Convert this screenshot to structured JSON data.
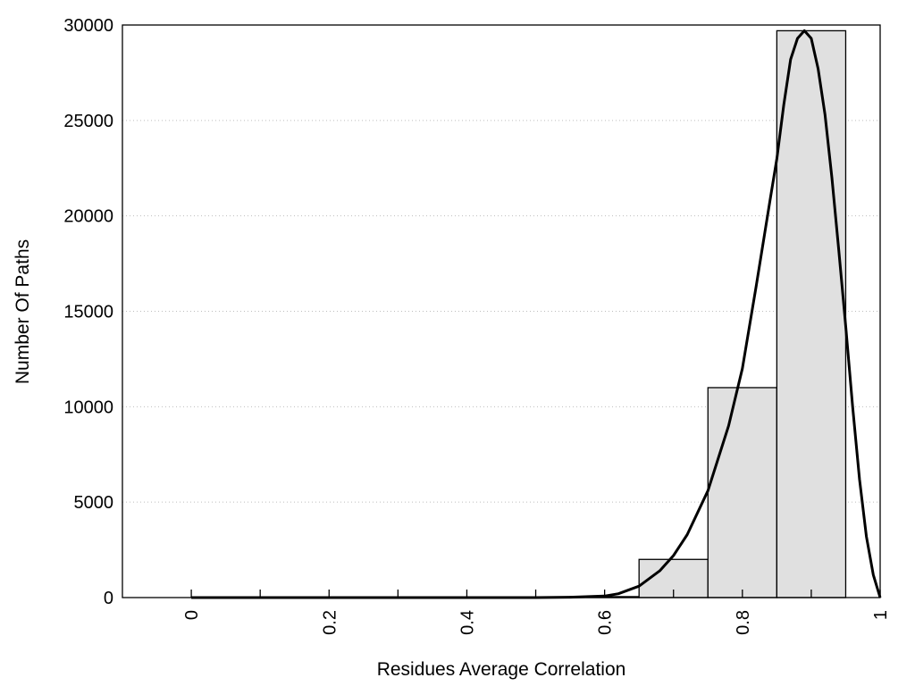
{
  "chart_data": {
    "type": "bar",
    "title": "",
    "xlabel": "Residues Average Correlation",
    "ylabel": "Number Of Paths",
    "xlim": [
      -0.1,
      1.0
    ],
    "ylim": [
      0,
      30000
    ],
    "grid": "horizontal dotted",
    "x_ticks": [
      0,
      0.2,
      0.4,
      0.6,
      0.8,
      1
    ],
    "x_tick_labels": [
      "0",
      "0.2",
      "0.4",
      "0.6",
      "0.8",
      "1"
    ],
    "y_ticks": [
      0,
      5000,
      10000,
      15000,
      20000,
      25000,
      30000
    ],
    "y_tick_labels": [
      "0",
      "5000",
      "10000",
      "15000",
      "20000",
      "25000",
      "30000"
    ],
    "bar_width": 0.1,
    "series": [
      {
        "kind": "bar",
        "x": [
          0,
          0.1,
          0.2,
          0.3,
          0.4,
          0.5,
          0.6,
          0.7,
          0.8,
          0.9
        ],
        "values": [
          0,
          0,
          0,
          0,
          0,
          0,
          50,
          2000,
          11000,
          29700
        ]
      },
      {
        "kind": "line",
        "x": [
          0,
          0.5,
          0.55,
          0.6,
          0.62,
          0.65,
          0.68,
          0.7,
          0.72,
          0.75,
          0.78,
          0.8,
          0.82,
          0.84,
          0.85,
          0.86,
          0.87,
          0.88,
          0.89,
          0.9,
          0.91,
          0.92,
          0.93,
          0.94,
          0.95,
          0.96,
          0.97,
          0.98,
          0.99,
          1.0
        ],
        "values": [
          0,
          0,
          20,
          80,
          200,
          600,
          1400,
          2200,
          3300,
          5600,
          9000,
          12000,
          16300,
          20800,
          23000,
          25800,
          28200,
          29300,
          29700,
          29300,
          27700,
          25300,
          22000,
          18200,
          14200,
          10000,
          6200,
          3200,
          1200,
          0
        ]
      }
    ]
  }
}
